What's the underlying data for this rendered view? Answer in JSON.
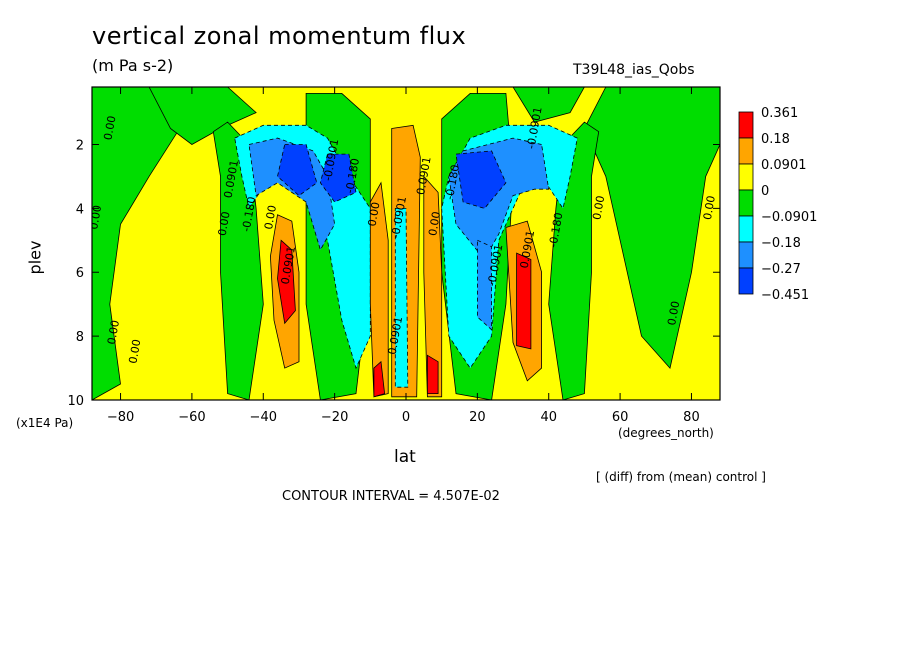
{
  "header": {
    "title": "vertical zonal momentum flux",
    "units": "(m Pa s-2)",
    "run_name": "T39L48_ias_Qobs"
  },
  "footer": {
    "diff_note": "[ (diff) from (mean) control ]",
    "contour_interval": "CONTOUR INTERVAL = 4.507E-02"
  },
  "chart_data": {
    "type": "heatmap",
    "subtype": "filled contour",
    "xlabel": "lat",
    "x_unit": "(degrees_north)",
    "ylabel": "plev",
    "y_unit": "(x1E4 Pa)",
    "xlim": [
      -88,
      88
    ],
    "ylim": [
      10,
      0.2
    ],
    "x_ticks": [
      -80,
      -60,
      -40,
      -20,
      0,
      20,
      40,
      60,
      80
    ],
    "y_ticks": [
      2,
      4,
      6,
      8,
      10
    ],
    "colorbar": {
      "levels": [
        "0.361",
        "0.18",
        "0.0901",
        "0",
        "-0.0901",
        "-0.18",
        "-0.27",
        "-0.451"
      ],
      "colors": [
        "#ff0000",
        "#ffa500",
        "#ffff00",
        "#00dd00",
        "#00ffff",
        "#1e90ff",
        "#0040ff"
      ]
    },
    "contour_labels": [
      {
        "text": "0.00",
        "lat": -82,
        "plev": 1.5
      },
      {
        "text": "0.00",
        "lat": -86,
        "plev": 4.3
      },
      {
        "text": "0.00",
        "lat": -81,
        "plev": 7.9
      },
      {
        "text": "0.00",
        "lat": -75,
        "plev": 8.5
      },
      {
        "text": "0.0901",
        "lat": -48,
        "plev": 3.1
      },
      {
        "text": "0.00",
        "lat": -50,
        "plev": 4.5
      },
      {
        "text": "-0.180",
        "lat": -43,
        "plev": 4.2
      },
      {
        "text": "0.00",
        "lat": -37,
        "plev": 4.3
      },
      {
        "text": "0.0901",
        "lat": -32,
        "plev": 5.8
      },
      {
        "text": "-0.0901",
        "lat": -20,
        "plev": 2.5
      },
      {
        "text": "-0.180",
        "lat": -14,
        "plev": 3.0
      },
      {
        "text": "0.00",
        "lat": -8,
        "plev": 4.2
      },
      {
        "text": "-0.0901",
        "lat": -1,
        "plev": 4.3
      },
      {
        "text": "0.0901",
        "lat": 6,
        "plev": 3.0
      },
      {
        "text": "0.00",
        "lat": 9,
        "plev": 4.5
      },
      {
        "text": "0.0901",
        "lat": -2,
        "plev": 8.0
      },
      {
        "text": "-0.180",
        "lat": 14,
        "plev": 3.2
      },
      {
        "text": "-0.0901",
        "lat": 37,
        "plev": 1.5
      },
      {
        "text": "-0.0901",
        "lat": 26,
        "plev": 5.8
      },
      {
        "text": "0.0901",
        "lat": 35,
        "plev": 5.3
      },
      {
        "text": "-0.180",
        "lat": 43,
        "plev": 4.7
      },
      {
        "text": "0.00",
        "lat": 55,
        "plev": 4.0
      },
      {
        "text": "0.00",
        "lat": 86,
        "plev": 4.0
      },
      {
        "text": "0.00",
        "lat": 76,
        "plev": 7.3
      }
    ]
  }
}
